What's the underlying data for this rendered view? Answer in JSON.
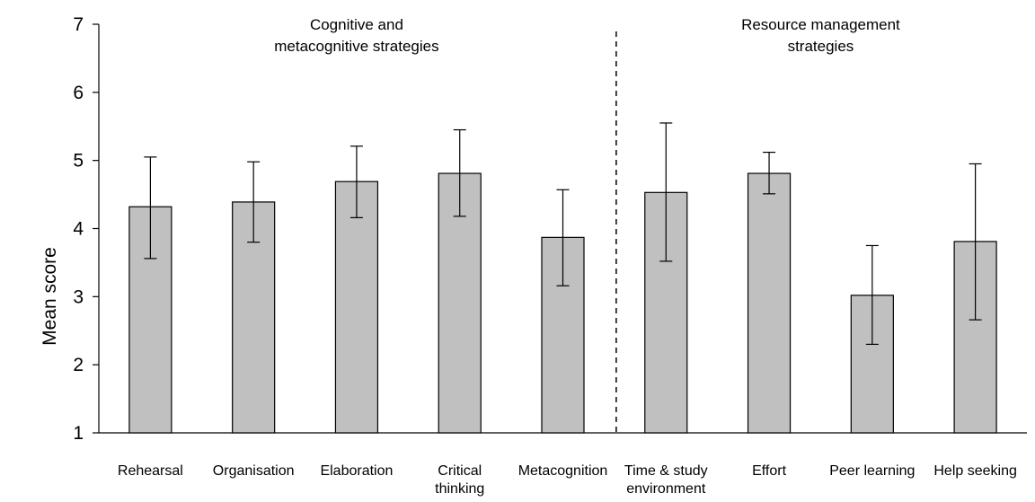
{
  "chart_data": {
    "type": "bar",
    "title": "",
    "xlabel": "",
    "ylabel": "Mean score",
    "ylim": [
      1,
      7
    ],
    "yticks": [
      1,
      2,
      3,
      4,
      5,
      6,
      7
    ],
    "grid": false,
    "categories": [
      [
        "Rehearsal"
      ],
      [
        "Organisation"
      ],
      [
        "Elaboration"
      ],
      [
        "Critical",
        "thinking"
      ],
      [
        "Metacognition"
      ],
      [
        "Time & study",
        "environment"
      ],
      [
        "Effort"
      ],
      [
        "Peer learning"
      ],
      [
        "Help seeking"
      ]
    ],
    "values": [
      4.32,
      4.39,
      4.69,
      4.81,
      3.87,
      4.53,
      4.81,
      3.02,
      3.81
    ],
    "error_low": [
      3.56,
      3.8,
      4.16,
      4.18,
      3.16,
      3.52,
      4.51,
      2.3,
      2.66
    ],
    "error_high": [
      5.05,
      4.98,
      5.21,
      5.45,
      4.57,
      5.55,
      5.12,
      3.75,
      4.95
    ],
    "bar_color": "#c0c0c0",
    "groups": [
      {
        "label_lines": [
          "Cognitive and",
          "metacognitive strategies"
        ],
        "start": 0,
        "end": 4
      },
      {
        "label_lines": [
          "Resource management",
          "strategies"
        ],
        "start": 5,
        "end": 8
      }
    ],
    "divider_after_index": 4
  }
}
